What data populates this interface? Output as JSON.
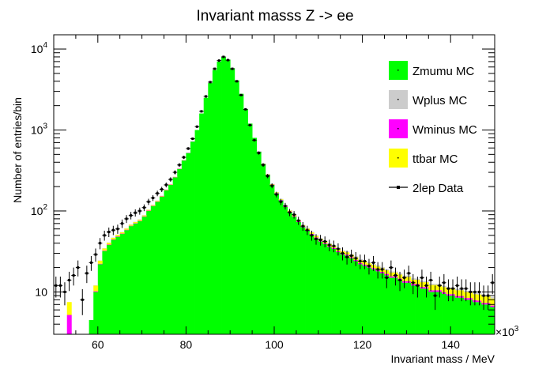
{
  "chart_data": {
    "type": "histogram",
    "title": "Invariant masss Z -> ee",
    "xlabel": "Invariant mass / MeV",
    "ylabel": "Number of entries/bin",
    "x_exponent_label": "×10",
    "x_exponent_power": "3",
    "x_scale_note": "x values in units of 10^3 MeV",
    "xlim": [
      50,
      150
    ],
    "ylim": [
      3,
      15000
    ],
    "y_scale": "log",
    "bin_width": 1,
    "x_ticks": [
      60,
      80,
      100,
      120,
      140
    ],
    "y_ticks": [
      {
        "base": "10",
        "power": ""
      },
      {
        "base": "10",
        "power": "2"
      },
      {
        "base": "10",
        "power": "3"
      },
      {
        "base": "10",
        "power": "4"
      }
    ],
    "y_tick_values": [
      10,
      100,
      1000,
      10000
    ],
    "legend_position": "top-right",
    "legend": [
      {
        "label": "Zmumu MC",
        "color": "#00ff00",
        "kind": "fill"
      },
      {
        "label": "Wplus MC",
        "color": "#cccccc",
        "kind": "fill"
      },
      {
        "label": "Wminus MC",
        "color": "#ff00ff",
        "kind": "fill"
      },
      {
        "label": "ttbar MC",
        "color": "#ffff00",
        "kind": "fill"
      },
      {
        "label": "2lep Data",
        "color": "#000000",
        "kind": "marker"
      }
    ],
    "bins_x": [
      50,
      51,
      52,
      53,
      54,
      55,
      56,
      57,
      58,
      59,
      60,
      61,
      62,
      63,
      64,
      65,
      66,
      67,
      68,
      69,
      70,
      71,
      72,
      73,
      74,
      75,
      76,
      77,
      78,
      79,
      80,
      81,
      82,
      83,
      84,
      85,
      86,
      87,
      88,
      89,
      90,
      91,
      92,
      93,
      94,
      95,
      96,
      97,
      98,
      99,
      100,
      101,
      102,
      103,
      104,
      105,
      106,
      107,
      108,
      109,
      110,
      111,
      112,
      113,
      114,
      115,
      116,
      117,
      118,
      119,
      120,
      121,
      122,
      123,
      124,
      125,
      126,
      127,
      128,
      129,
      130,
      131,
      132,
      133,
      134,
      135,
      136,
      137,
      138,
      139,
      140,
      141,
      142,
      143,
      144,
      145,
      146,
      147,
      148,
      149
    ],
    "stack": [
      {
        "name": "Zmumu MC",
        "color": "#00ff00",
        "values": [
          0,
          0,
          0,
          0,
          0,
          0,
          0,
          0,
          4.5,
          10,
          22,
          32,
          38,
          44,
          48,
          52,
          58,
          65,
          70,
          75,
          85,
          100,
          115,
          130,
          150,
          180,
          210,
          260,
          330,
          420,
          520,
          720,
          1000,
          1600,
          2500,
          3800,
          5500,
          7000,
          8000,
          7400,
          5800,
          4100,
          2800,
          1800,
          1200,
          800,
          540,
          380,
          280,
          210,
          165,
          135,
          112,
          97,
          85,
          73,
          63,
          57,
          51,
          46,
          42,
          39,
          36,
          34,
          31,
          29,
          28,
          26,
          24,
          22,
          21,
          20,
          19,
          18,
          17,
          16,
          15,
          15,
          14,
          13,
          13,
          12,
          12,
          11,
          11,
          10,
          10,
          10,
          9.5,
          9,
          9,
          8.5,
          8.5,
          8,
          8,
          7.5,
          7.5,
          7,
          7,
          6.5
        ]
      },
      {
        "name": "Wminus MC",
        "color": "#ff00ff",
        "values": [
          0,
          0,
          0,
          5.2,
          0,
          0,
          0,
          0,
          0,
          0.2,
          0.3,
          0.4,
          0.5,
          0.5,
          0.6,
          0.6,
          0.7,
          0.7,
          0.8,
          0.9,
          1,
          1.1,
          1.2,
          1.3,
          1.4,
          1.5,
          1.7,
          1.9,
          2.2,
          2.6,
          3,
          3.5,
          4,
          5,
          6,
          7,
          8,
          9,
          9,
          8,
          7,
          6,
          5,
          4,
          3.5,
          3,
          2.8,
          2.6,
          2.4,
          2.2,
          2,
          2,
          1.8,
          1.6,
          1.5,
          1.4,
          1.3,
          1.2,
          1.2,
          1.1,
          1.1,
          1,
          1,
          1,
          0.9,
          0.9,
          0.9,
          0.8,
          0.8,
          0.8,
          0.8,
          0.7,
          0.7,
          0.7,
          0.7,
          0.7,
          0.6,
          0.6,
          0.6,
          0.6,
          0.6,
          0.5,
          0.5,
          0.5,
          0.5,
          0.5,
          0.5,
          0.5,
          0.4,
          0.4,
          0.4,
          0.4,
          0.4,
          0.4,
          0.4,
          0.4,
          0.3,
          0.3,
          0.3,
          0.3
        ]
      },
      {
        "name": "ttbar MC",
        "color": "#ffff00",
        "values": [
          0,
          0,
          0,
          2.3,
          0,
          0,
          0,
          0,
          0,
          1.8,
          2,
          2,
          2,
          2,
          2,
          2,
          2,
          2,
          2.1,
          2.1,
          2.1,
          2.1,
          2.1,
          2.2,
          2.2,
          2.2,
          2.2,
          2.3,
          2.3,
          2.3,
          2.3,
          2.4,
          2.4,
          2.4,
          2.4,
          2.5,
          2.5,
          2.5,
          2.5,
          2.5,
          2.5,
          2.5,
          2.5,
          2.5,
          2.5,
          2.4,
          2.4,
          2.4,
          2.3,
          2.3,
          2.3,
          2.3,
          2.3,
          2.2,
          2.2,
          2.2,
          2.2,
          2.2,
          2.1,
          2.1,
          2.1,
          2.1,
          2.1,
          2,
          2,
          2,
          2,
          2,
          2,
          1.9,
          1.9,
          1.9,
          1.9,
          1.9,
          1.9,
          1.8,
          1.8,
          1.8,
          1.8,
          1.8,
          1.8,
          1.7,
          1.7,
          1.7,
          1.7,
          1.7,
          1.7,
          1.6,
          1.6,
          1.6,
          1.6,
          1.6,
          1.6,
          1.6,
          1.5,
          1.5,
          1.5,
          1.5,
          1.5,
          1.5
        ]
      },
      {
        "name": "Wplus MC",
        "color": "#cccccc",
        "values": [
          0,
          0,
          0,
          0,
          0,
          0,
          0,
          0,
          0,
          0.1,
          0.2,
          0.3,
          0.3,
          0.4,
          0.4,
          0.5,
          0.5,
          0.6,
          0.6,
          0.7,
          0.8,
          0.9,
          1,
          1.1,
          1.2,
          1.3,
          1.5,
          1.7,
          2,
          2.3,
          2.7,
          3.1,
          3.6,
          4.5,
          5.5,
          6.5,
          7.5,
          8,
          8,
          7.5,
          6.5,
          5.5,
          4.5,
          3.8,
          3.2,
          2.8,
          2.5,
          2.2,
          2,
          1.8,
          1.7,
          1.6,
          1.5,
          1.4,
          1.3,
          1.2,
          1.1,
          1.1,
          1,
          1,
          0.9,
          0.9,
          0.9,
          0.8,
          0.8,
          0.8,
          0.7,
          0.7,
          0.7,
          0.7,
          0.6,
          0.6,
          0.6,
          0.6,
          0.6,
          0.5,
          0.5,
          0.5,
          0.5,
          0.5,
          0.5,
          0.5,
          0.4,
          0.4,
          0.4,
          0.4,
          0.4,
          0.4,
          0.4,
          0.4,
          0.3,
          0.3,
          0.3,
          0.3,
          0.3,
          0.3,
          0.3,
          0.3,
          0.3,
          0.3
        ]
      }
    ],
    "data_points": [
      12,
      12,
      10,
      14,
      16,
      20,
      8,
      17,
      23,
      29,
      40,
      50,
      55,
      58,
      60,
      70,
      80,
      88,
      95,
      100,
      110,
      130,
      145,
      165,
      185,
      210,
      245,
      300,
      370,
      460,
      590,
      780,
      1100,
      1700,
      2600,
      3900,
      5700,
      7200,
      8000,
      7300,
      5700,
      4000,
      2700,
      1800,
      1150,
      750,
      520,
      370,
      270,
      205,
      160,
      130,
      115,
      96,
      90,
      76,
      65,
      58,
      50,
      45,
      44,
      42,
      38,
      37,
      34,
      30,
      27,
      28,
      26,
      24,
      24,
      21,
      23,
      19,
      19,
      15,
      20,
      16,
      14,
      15,
      17,
      13,
      12,
      15,
      12,
      14,
      9,
      12,
      13,
      11,
      11,
      12,
      11,
      11,
      10,
      10,
      10,
      9,
      9,
      13
    ]
  }
}
